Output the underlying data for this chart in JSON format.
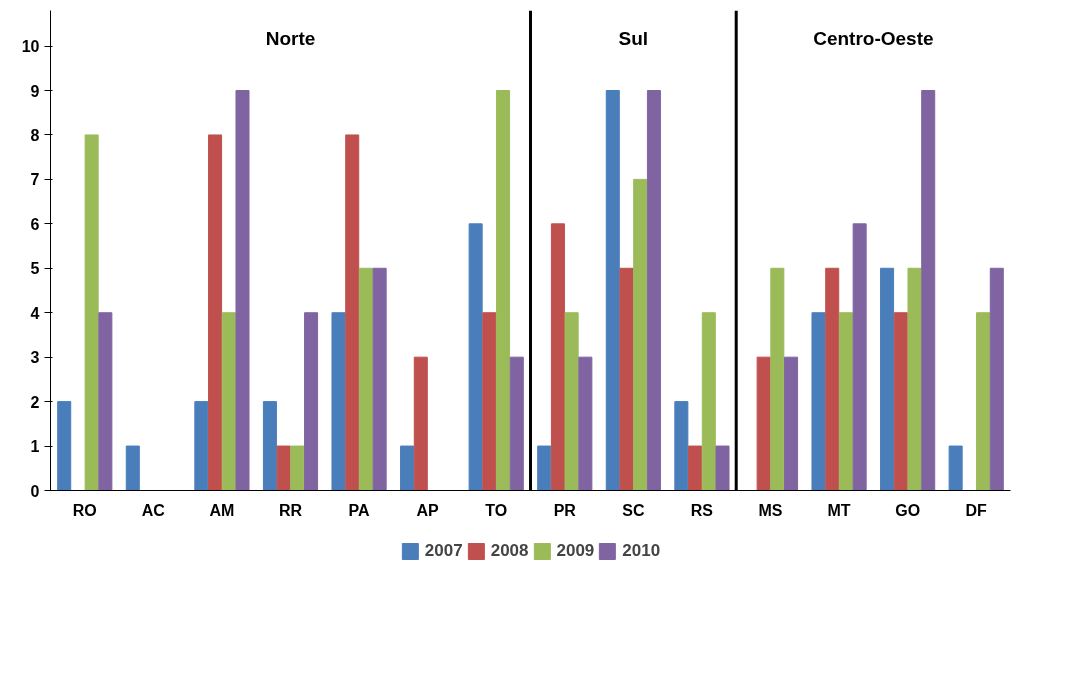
{
  "chart_data": {
    "type": "bar",
    "categories": [
      "RO",
      "AC",
      "AM",
      "RR",
      "PA",
      "AP",
      "TO",
      "PR",
      "SC",
      "RS",
      "MS",
      "MT",
      "GO",
      "DF"
    ],
    "series": [
      {
        "name": "2007",
        "color": "#4a7ebb",
        "values": [
          2,
          1,
          2,
          2,
          4,
          1,
          6,
          1,
          9,
          2,
          0,
          4,
          5,
          1
        ]
      },
      {
        "name": "2008",
        "color": "#c0504d",
        "values": [
          0,
          0,
          8,
          1,
          8,
          3,
          4,
          6,
          5,
          1,
          3,
          5,
          4,
          0
        ]
      },
      {
        "name": "2009",
        "color": "#9bbb59",
        "values": [
          8,
          0,
          4,
          1,
          5,
          0,
          9,
          4,
          7,
          4,
          5,
          4,
          5,
          4
        ]
      },
      {
        "name": "2010",
        "color": "#8064a2",
        "values": [
          4,
          0,
          9,
          4,
          5,
          0,
          3,
          3,
          9,
          1,
          3,
          6,
          9,
          5
        ]
      }
    ],
    "ylim": [
      0,
      10.8
    ],
    "yticks": [
      0,
      1,
      2,
      3,
      4,
      5,
      6,
      7,
      8,
      9,
      10
    ],
    "annotations": [
      "Norte",
      "Sul",
      "Centro-Oeste"
    ],
    "grid": false,
    "legend": "bottom"
  }
}
